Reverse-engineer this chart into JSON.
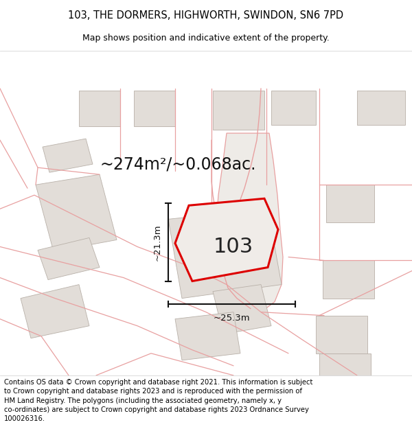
{
  "title_line1": "103, THE DORMERS, HIGHWORTH, SWINDON, SN6 7PD",
  "title_line2": "Map shows position and indicative extent of the property.",
  "area_label": "~274m²/~0.068ac.",
  "label_103": "103",
  "dim_vertical": "~21.3m",
  "dim_horizontal": "~25.3m",
  "footer_lines": [
    "Contains OS data © Crown copyright and database right 2021. This information is subject",
    "to Crown copyright and database rights 2023 and is reproduced with the permission of",
    "HM Land Registry. The polygons (including the associated geometry, namely x, y",
    "co-ordinates) are subject to Crown copyright and database rights 2023 Ordnance Survey",
    "100026316."
  ],
  "map_bg": "#f7f4f1",
  "highlight_color": "#dd0000",
  "building_fill": "#e2ddd8",
  "building_ec": "#b8b0a8",
  "road_outline_color": "#e8a0a0",
  "dim_line_color": "#111111",
  "title_fontsize": 10.5,
  "subtitle_fontsize": 9,
  "footer_fontsize": 7.2,
  "area_fontsize": 17,
  "label_fontsize": 22,
  "dim_fontsize": 9.5
}
